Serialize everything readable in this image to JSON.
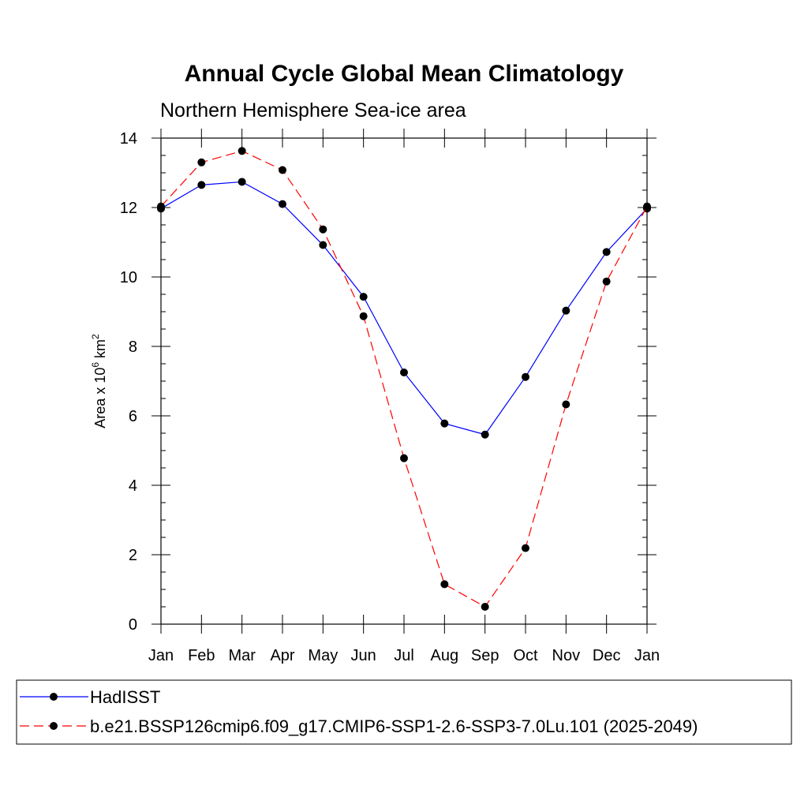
{
  "chart_data": {
    "type": "line",
    "title": "Annual Cycle Global Mean Climatology",
    "subtitle": "Northern Hemisphere Sea-ice area",
    "ylabel_prefix": "Area x 10",
    "ylabel_exp": "6",
    "ylabel_unit": " km",
    "ylabel_unit_exp": "2",
    "xlabel": "",
    "categories": [
      "Jan",
      "Feb",
      "Mar",
      "Apr",
      "May",
      "Jun",
      "Jul",
      "Aug",
      "Sep",
      "Oct",
      "Nov",
      "Dec",
      "Jan"
    ],
    "ylim": [
      0,
      14
    ],
    "yticks": [
      0,
      2,
      4,
      6,
      8,
      10,
      12,
      14
    ],
    "grid": false,
    "legend_position": "bottom",
    "series": [
      {
        "name": "HadISST",
        "color": "#0000ff",
        "dashed": false,
        "values": [
          11.97,
          12.65,
          12.74,
          12.1,
          10.92,
          9.43,
          7.25,
          5.78,
          5.46,
          7.12,
          9.03,
          10.72,
          11.97
        ]
      },
      {
        "name": "b.e21.BSSP126cmip6.f09_g17.CMIP6-SSP1-2.6-SSP3-7.0Lu.101 (2025-2049)",
        "color": "#ff0000",
        "dashed": true,
        "values": [
          12.03,
          13.3,
          13.63,
          13.08,
          11.37,
          8.87,
          4.78,
          1.15,
          0.5,
          2.19,
          6.33,
          9.87,
          12.03
        ]
      }
    ]
  }
}
